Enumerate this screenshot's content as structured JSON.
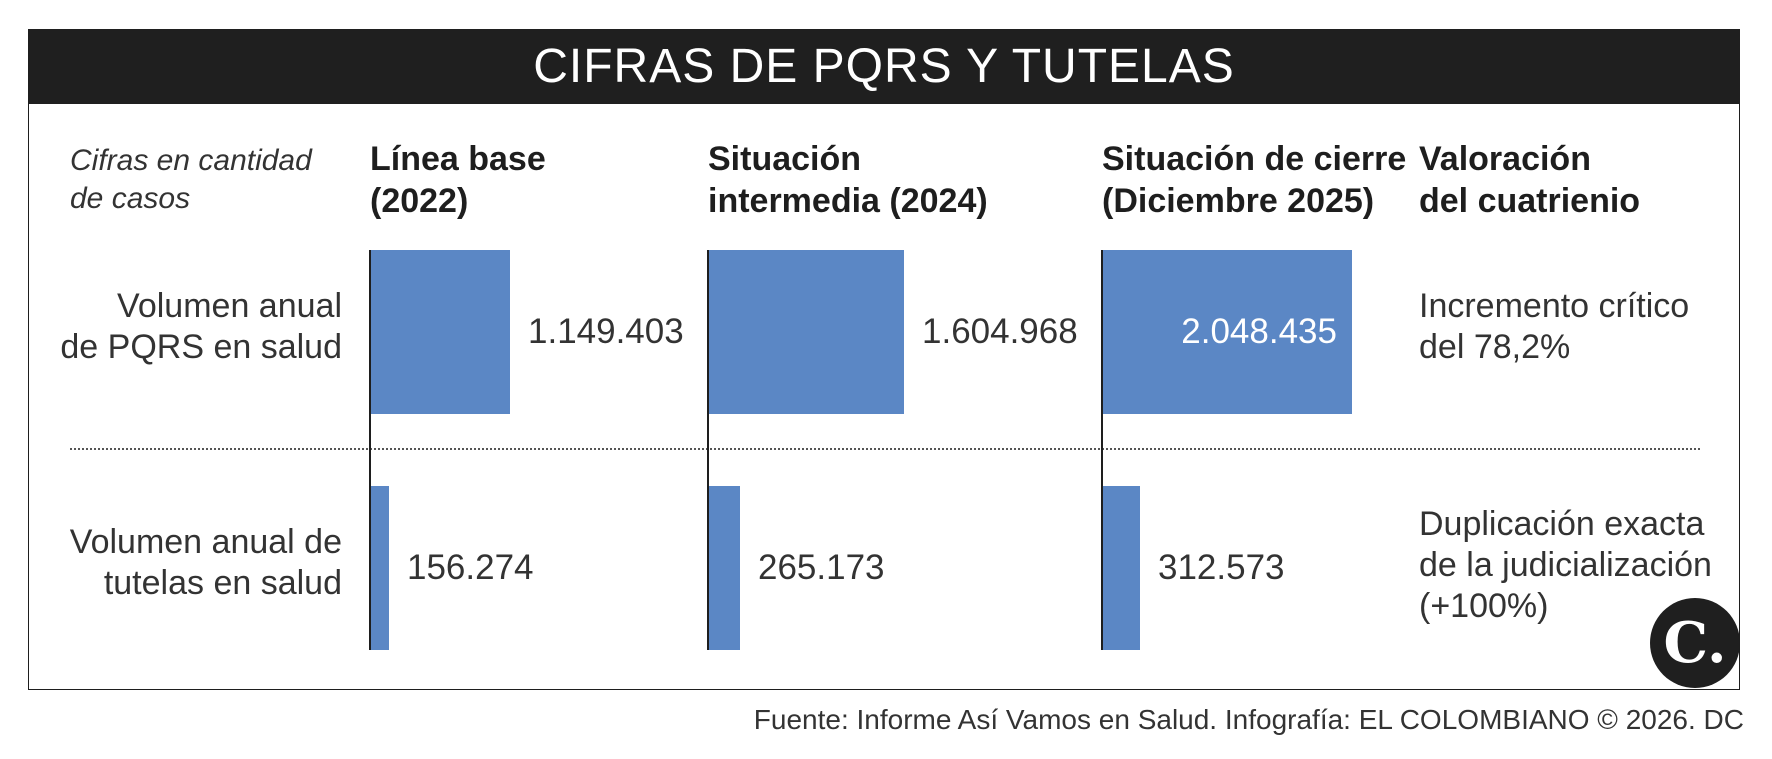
{
  "header": {
    "title": "CIFRAS DE PQRS Y TUTELAS"
  },
  "note": "Cifras en cantidad de casos",
  "columns": [
    {
      "line1": "Línea base",
      "line2": "(2022)"
    },
    {
      "line1": "Situación",
      "line2": "intermedia (2024)"
    },
    {
      "line1": "Situación de cierre",
      "line2": "(Diciembre 2025)"
    },
    {
      "line1": "Valoración",
      "line2": "del cuatrienio"
    }
  ],
  "chart_data": {
    "type": "bar",
    "categories": [
      "Línea base (2022)",
      "Situación intermedia (2024)",
      "Situación de cierre (Diciembre 2025)"
    ],
    "series": [
      {
        "name": "Volumen anual de PQRS en salud",
        "values": [
          1149403,
          1604968,
          2048435
        ],
        "labels": [
          "1.149.403",
          "1.604.968",
          "2.048.435"
        ],
        "assessment": "Incremento crítico del 78,2%"
      },
      {
        "name": "Volumen anual de tutelas en salud",
        "values": [
          156274,
          265173,
          312573
        ],
        "labels": [
          "156.274",
          "265.173",
          "312.573"
        ],
        "assessment": "Duplicación exacta de la judicialización (+100%)"
      }
    ],
    "colors": {
      "bar": "#5b87c5",
      "header": "#1f1f1f"
    }
  },
  "rows": [
    {
      "label_line1": "Volumen anual",
      "label_line2": "de PQRS en salud",
      "assess_line1": "Incremento crítico",
      "assess_line2": "del 78,2%",
      "assess_line3": ""
    },
    {
      "label_line1": "Volumen anual de",
      "label_line2": "tutelas en salud",
      "assess_line1": "Duplicación exacta",
      "assess_line2": "de la judicialización",
      "assess_line3": "(+100%)"
    }
  ],
  "logo": {
    "text": "C."
  },
  "source": "Fuente: Informe Así Vamos en Salud. Infografía: EL COLOMBIANO © 2026. DC"
}
